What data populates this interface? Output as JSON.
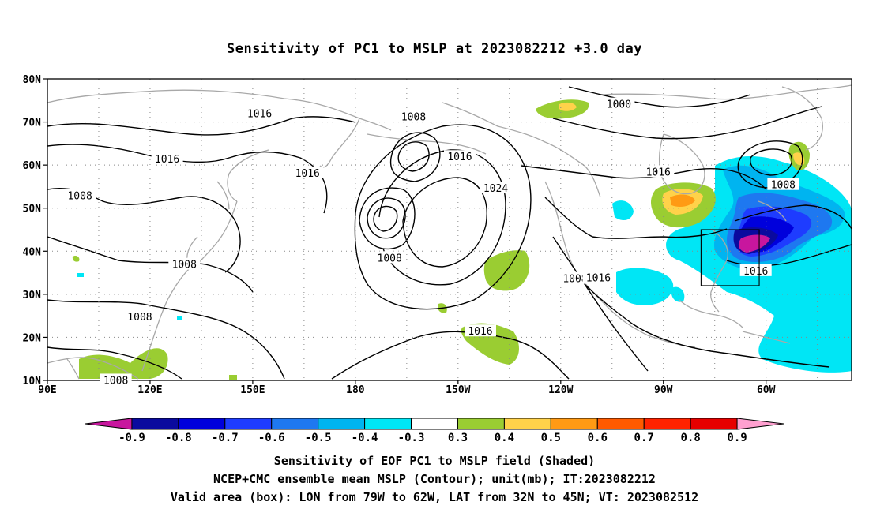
{
  "title": "Sensitivity of PC1 to MSLP at 2023082212 +3.0 day",
  "map": {
    "lon_min": 90,
    "lon_max": 325,
    "lat_min": 10,
    "lat_max": 80,
    "lat_labels": [
      "80N",
      "70N",
      "60N",
      "50N",
      "40N",
      "30N",
      "20N",
      "10N"
    ],
    "lat_values": [
      80,
      70,
      60,
      50,
      40,
      30,
      20,
      10
    ],
    "lon_labels": [
      "90E",
      "120E",
      "150E",
      "180",
      "150W",
      "120W",
      "90W",
      "60W"
    ],
    "lon_values": [
      90,
      120,
      150,
      180,
      210,
      240,
      270,
      300
    ],
    "grid_lon_values": [
      90,
      105,
      120,
      135,
      150,
      165,
      180,
      195,
      210,
      225,
      240,
      255,
      270,
      285,
      300,
      315
    ],
    "grid_lat_values": [
      20,
      30,
      40,
      50,
      60,
      70
    ],
    "contour_labels": [
      {
        "text": "1016",
        "lon": 166,
        "lat": 58.2
      },
      {
        "text": "1016",
        "lon": 125,
        "lat": 61.5
      },
      {
        "text": "1008",
        "lon": 99.5,
        "lat": 53
      },
      {
        "text": "1016",
        "lon": 152,
        "lat": 72
      },
      {
        "text": "1008",
        "lon": 197,
        "lat": 71.3
      },
      {
        "text": "1016",
        "lon": 210.5,
        "lat": 62
      },
      {
        "text": "1024",
        "lon": 221,
        "lat": 54.7
      },
      {
        "text": "1008",
        "lon": 190,
        "lat": 38.5
      },
      {
        "text": "1008",
        "lon": 130,
        "lat": 37
      },
      {
        "text": "1008",
        "lon": 117,
        "lat": 24.8
      },
      {
        "text": "1008",
        "lon": 110,
        "lat": 10.1
      },
      {
        "text": "1000",
        "lon": 257,
        "lat": 74.2
      },
      {
        "text": "1016",
        "lon": 268.5,
        "lat": 58.5
      },
      {
        "text": "1008",
        "lon": 305,
        "lat": 55.5
      },
      {
        "text": "1016",
        "lon": 297,
        "lat": 35.5
      },
      {
        "text": "1008",
        "lon": 244.2,
        "lat": 33.7
      },
      {
        "text": "1016",
        "lon": 251,
        "lat": 33.9
      },
      {
        "text": "1016",
        "lon": 216.5,
        "lat": 21.5
      }
    ],
    "valid_box": {
      "lon_w": 281,
      "lon_e": 298,
      "lat_s": 32,
      "lat_n": 45
    }
  },
  "colorbar": {
    "labels": [
      "-0.9",
      "-0.8",
      "-0.7",
      "-0.6",
      "-0.5",
      "-0.4",
      "-0.3",
      "0.3",
      "0.4",
      "0.5",
      "0.6",
      "0.7",
      "0.8",
      "0.9"
    ],
    "colors": [
      "#c8169e",
      "#0a0a9e",
      "#0000dc",
      "#1e3cff",
      "#1e78f0",
      "#00b4f0",
      "#00e6f5",
      "#ffffff",
      "#9acd32",
      "#ffd24a",
      "#ff9a14",
      "#ff5a00",
      "#ff2200",
      "#e60000",
      "#ffa0d0"
    ]
  },
  "captions": [
    "Sensitivity of EOF PC1 to MSLP field (Shaded)",
    "NCEP+CMC ensemble mean MSLP (Contour); unit(mb); IT:2023082212",
    "Valid area (box): LON from 79W to 62W, LAT from 32N to 45N; VT: 2023082512"
  ]
}
